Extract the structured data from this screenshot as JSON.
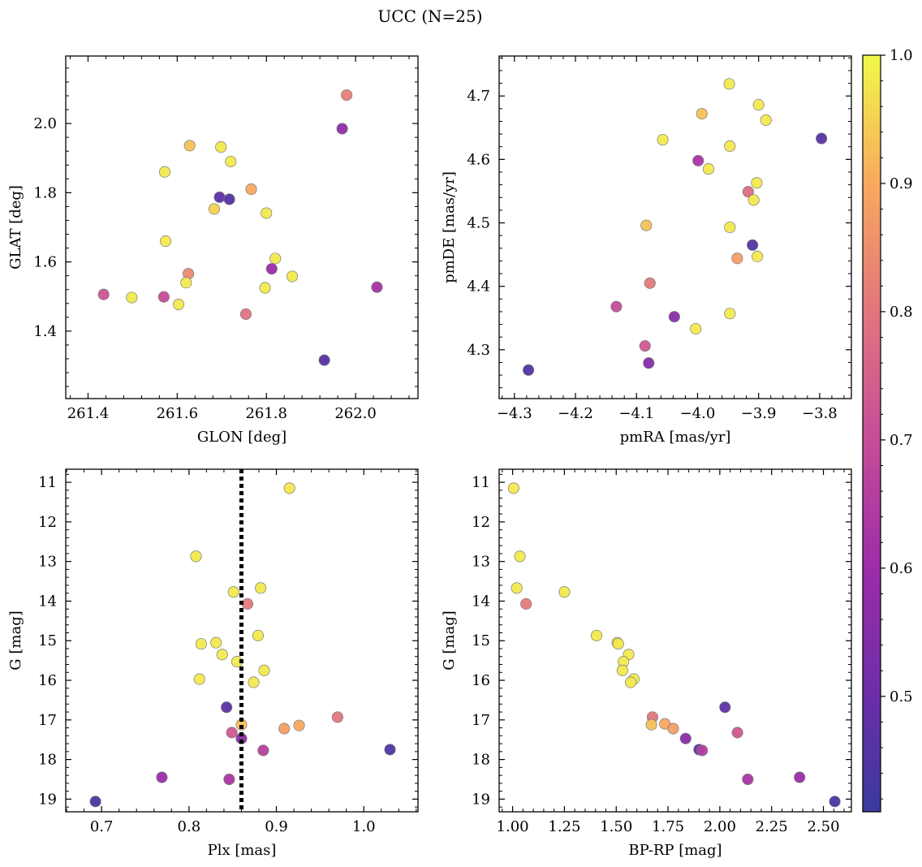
{
  "figure": {
    "title": "UCC (N=25)"
  },
  "colorbar": {
    "range": [
      0.41,
      1.0
    ],
    "ticks": [
      "0.5",
      "0.6",
      "0.7",
      "0.8",
      "0.9",
      "1.0"
    ]
  },
  "chart_data": [
    {
      "type": "scatter",
      "xlabel": "GLON [deg]",
      "ylabel": "GLAT [deg]",
      "xlim": [
        261.35,
        262.14
      ],
      "ylim": [
        1.205,
        2.195
      ],
      "xticks": [
        "261.4",
        "261.6",
        "261.8",
        "262.0"
      ],
      "yticks": [
        "1.4",
        "1.6",
        "1.8",
        "2.0"
      ],
      "points": [
        {
          "x": 261.98,
          "y": 2.082,
          "c": 0.82
        },
        {
          "x": 261.97,
          "y": 1.985,
          "c": 0.57
        },
        {
          "x": 261.628,
          "y": 1.936,
          "c": 0.93
        },
        {
          "x": 261.698,
          "y": 1.932,
          "c": 0.98
        },
        {
          "x": 261.72,
          "y": 1.89,
          "c": 0.98
        },
        {
          "x": 261.572,
          "y": 1.86,
          "c": 0.98
        },
        {
          "x": 261.766,
          "y": 1.81,
          "c": 0.9
        },
        {
          "x": 261.695,
          "y": 1.787,
          "c": 0.47
        },
        {
          "x": 261.717,
          "y": 1.781,
          "c": 0.46
        },
        {
          "x": 261.683,
          "y": 1.753,
          "c": 0.95
        },
        {
          "x": 261.8,
          "y": 1.741,
          "c": 0.98
        },
        {
          "x": 261.574,
          "y": 1.66,
          "c": 0.98
        },
        {
          "x": 261.82,
          "y": 1.61,
          "c": 0.98
        },
        {
          "x": 261.812,
          "y": 1.58,
          "c": 0.6
        },
        {
          "x": 261.625,
          "y": 1.566,
          "c": 0.84
        },
        {
          "x": 261.858,
          "y": 1.558,
          "c": 0.98
        },
        {
          "x": 261.62,
          "y": 1.54,
          "c": 0.98
        },
        {
          "x": 261.797,
          "y": 1.525,
          "c": 0.98
        },
        {
          "x": 262.048,
          "y": 1.527,
          "c": 0.62
        },
        {
          "x": 261.435,
          "y": 1.506,
          "c": 0.72
        },
        {
          "x": 261.498,
          "y": 1.497,
          "c": 0.98
        },
        {
          "x": 261.57,
          "y": 1.499,
          "c": 0.7
        },
        {
          "x": 261.603,
          "y": 1.477,
          "c": 0.98
        },
        {
          "x": 261.754,
          "y": 1.449,
          "c": 0.79
        },
        {
          "x": 261.93,
          "y": 1.316,
          "c": 0.46
        }
      ]
    },
    {
      "type": "scatter",
      "xlabel": "pmRA [mas/yr]",
      "ylabel": "pmDE [mas/yr]",
      "xlim": [
        -4.325,
        -3.748
      ],
      "ylim": [
        4.223,
        4.763
      ],
      "xticks": [
        "−4.3",
        "−4.2",
        "−4.1",
        "−4.0",
        "−3.9",
        "−3.8"
      ],
      "yticks": [
        "4.3",
        "4.4",
        "4.5",
        "4.6",
        "4.7"
      ],
      "points": [
        {
          "x": -3.948,
          "y": 4.719,
          "c": 0.98
        },
        {
          "x": -3.9,
          "y": 4.686,
          "c": 0.98
        },
        {
          "x": -3.993,
          "y": 4.672,
          "c": 0.93
        },
        {
          "x": -3.888,
          "y": 4.662,
          "c": 0.98
        },
        {
          "x": -3.797,
          "y": 4.633,
          "c": 0.46
        },
        {
          "x": -4.057,
          "y": 4.631,
          "c": 0.98
        },
        {
          "x": -3.947,
          "y": 4.621,
          "c": 0.98
        },
        {
          "x": -3.999,
          "y": 4.598,
          "c": 0.63
        },
        {
          "x": -3.982,
          "y": 4.585,
          "c": 0.98
        },
        {
          "x": -3.903,
          "y": 4.563,
          "c": 0.98
        },
        {
          "x": -3.917,
          "y": 4.549,
          "c": 0.78
        },
        {
          "x": -3.908,
          "y": 4.536,
          "c": 0.98
        },
        {
          "x": -4.084,
          "y": 4.496,
          "c": 0.93
        },
        {
          "x": -3.947,
          "y": 4.493,
          "c": 0.98
        },
        {
          "x": -3.91,
          "y": 4.465,
          "c": 0.45
        },
        {
          "x": -3.902,
          "y": 4.447,
          "c": 0.98
        },
        {
          "x": -3.935,
          "y": 4.444,
          "c": 0.88
        },
        {
          "x": -4.078,
          "y": 4.405,
          "c": 0.81
        },
        {
          "x": -4.133,
          "y": 4.368,
          "c": 0.7
        },
        {
          "x": -3.947,
          "y": 4.357,
          "c": 0.98
        },
        {
          "x": -4.038,
          "y": 4.352,
          "c": 0.56
        },
        {
          "x": -4.003,
          "y": 4.333,
          "c": 0.98
        },
        {
          "x": -4.086,
          "y": 4.306,
          "c": 0.73
        },
        {
          "x": -4.08,
          "y": 4.279,
          "c": 0.55
        },
        {
          "x": -4.277,
          "y": 4.268,
          "c": 0.45
        }
      ]
    },
    {
      "type": "scatter",
      "xlabel": "Plx [mas]",
      "ylabel": "G [mag]",
      "xlim": [
        0.659,
        1.062
      ],
      "ylim": [
        19.32,
        10.67
      ],
      "y_inverted": true,
      "vline": 0.86,
      "xticks": [
        "0.7",
        "0.8",
        "0.9",
        "1.0"
      ],
      "yticks": [
        "11",
        "12",
        "13",
        "14",
        "15",
        "16",
        "17",
        "18",
        "19"
      ],
      "points": [
        {
          "x": 0.915,
          "y": 11.15,
          "c": 0.98
        },
        {
          "x": 0.808,
          "y": 12.87,
          "c": 0.98
        },
        {
          "x": 0.882,
          "y": 13.67,
          "c": 0.98
        },
        {
          "x": 0.851,
          "y": 13.77,
          "c": 0.98
        },
        {
          "x": 0.867,
          "y": 14.07,
          "c": 0.81
        },
        {
          "x": 0.879,
          "y": 14.87,
          "c": 0.98
        },
        {
          "x": 0.831,
          "y": 15.05,
          "c": 0.98
        },
        {
          "x": 0.814,
          "y": 15.08,
          "c": 0.98
        },
        {
          "x": 0.838,
          "y": 15.35,
          "c": 0.98
        },
        {
          "x": 0.855,
          "y": 15.53,
          "c": 0.98
        },
        {
          "x": 0.886,
          "y": 15.75,
          "c": 0.98
        },
        {
          "x": 0.812,
          "y": 15.97,
          "c": 0.98
        },
        {
          "x": 0.874,
          "y": 16.05,
          "c": 0.98
        },
        {
          "x": 0.843,
          "y": 16.68,
          "c": 0.47
        },
        {
          "x": 0.97,
          "y": 16.93,
          "c": 0.8
        },
        {
          "x": 0.86,
          "y": 17.12,
          "c": 0.93
        },
        {
          "x": 0.926,
          "y": 17.14,
          "c": 0.9
        },
        {
          "x": 0.909,
          "y": 17.22,
          "c": 0.88
        },
        {
          "x": 0.849,
          "y": 17.32,
          "c": 0.73
        },
        {
          "x": 0.86,
          "y": 17.47,
          "c": 0.56
        },
        {
          "x": 1.03,
          "y": 17.75,
          "c": 0.45
        },
        {
          "x": 0.885,
          "y": 17.77,
          "c": 0.66
        },
        {
          "x": 0.769,
          "y": 18.45,
          "c": 0.6
        },
        {
          "x": 0.846,
          "y": 18.5,
          "c": 0.63
        },
        {
          "x": 0.693,
          "y": 19.06,
          "c": 0.44
        }
      ]
    },
    {
      "type": "scatter",
      "xlabel": "BP-RP [mag]",
      "ylabel": "G [mag]",
      "xlim": [
        0.935,
        2.635
      ],
      "ylim": [
        19.32,
        10.67
      ],
      "y_inverted": true,
      "xticks": [
        "1.00",
        "1.25",
        "1.50",
        "1.75",
        "2.00",
        "2.25",
        "2.50"
      ],
      "yticks": [
        "11",
        "12",
        "13",
        "14",
        "15",
        "16",
        "17",
        "18",
        "19"
      ],
      "points": [
        {
          "x": 1.005,
          "y": 11.15,
          "c": 0.98
        },
        {
          "x": 1.035,
          "y": 12.87,
          "c": 0.98
        },
        {
          "x": 1.02,
          "y": 13.67,
          "c": 0.98
        },
        {
          "x": 1.065,
          "y": 14.07,
          "c": 0.81
        },
        {
          "x": 1.25,
          "y": 13.77,
          "c": 0.98
        },
        {
          "x": 1.405,
          "y": 14.87,
          "c": 0.98
        },
        {
          "x": 1.505,
          "y": 15.05,
          "c": 0.98
        },
        {
          "x": 1.51,
          "y": 15.08,
          "c": 0.98
        },
        {
          "x": 1.56,
          "y": 15.35,
          "c": 0.98
        },
        {
          "x": 1.535,
          "y": 15.53,
          "c": 0.98
        },
        {
          "x": 1.53,
          "y": 15.75,
          "c": 0.98
        },
        {
          "x": 1.585,
          "y": 15.97,
          "c": 0.98
        },
        {
          "x": 1.57,
          "y": 16.05,
          "c": 0.98
        },
        {
          "x": 1.675,
          "y": 16.93,
          "c": 0.8
        },
        {
          "x": 2.025,
          "y": 16.68,
          "c": 0.47
        },
        {
          "x": 1.67,
          "y": 17.12,
          "c": 0.93
        },
        {
          "x": 1.735,
          "y": 17.1,
          "c": 0.9
        },
        {
          "x": 1.775,
          "y": 17.22,
          "c": 0.88
        },
        {
          "x": 2.085,
          "y": 17.32,
          "c": 0.73
        },
        {
          "x": 1.835,
          "y": 17.47,
          "c": 0.56
        },
        {
          "x": 1.9,
          "y": 17.75,
          "c": 0.45
        },
        {
          "x": 1.915,
          "y": 17.77,
          "c": 0.66
        },
        {
          "x": 2.135,
          "y": 18.5,
          "c": 0.63
        },
        {
          "x": 2.385,
          "y": 18.45,
          "c": 0.6
        },
        {
          "x": 2.555,
          "y": 19.06,
          "c": 0.44
        }
      ]
    }
  ]
}
